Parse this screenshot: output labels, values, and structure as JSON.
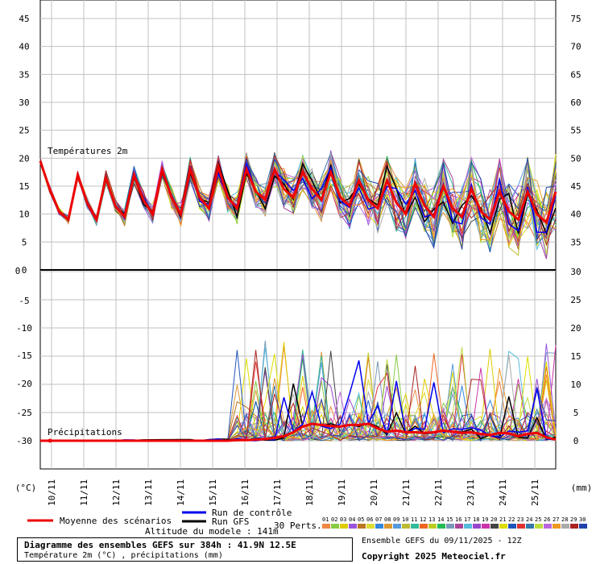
{
  "chart_data": {
    "type": "line",
    "title": "Diagramme des ensembles GEFS sur 384h : 41.9N 12.5E",
    "subtitle": "Température 2m (°C) , précipitations (mm)",
    "run_info": "Ensemble GEFS du 09/11/2025 - 12Z",
    "copyright": "Copyright 2025 Meteociel.fr",
    "altitude_note": "Altitude du modele : 141m",
    "left_unit": "(°C)",
    "right_unit": "(mm)",
    "panel_labels": {
      "temperature": "Températures 2m",
      "precipitation": "Précipitations"
    },
    "legend": {
      "mean": "Moyenne des scénarios",
      "control": "Run de contrôle",
      "gfs": "Run GFS",
      "perts_label": "30 Perts.",
      "perts_numbers": [
        "01",
        "02",
        "03",
        "04",
        "05",
        "06",
        "07",
        "08",
        "09",
        "10",
        "11",
        "12",
        "13",
        "14",
        "15",
        "16",
        "17",
        "18",
        "19",
        "20",
        "21",
        "22",
        "23",
        "24",
        "25",
        "26",
        "27",
        "28",
        "29",
        "30"
      ],
      "perts_colors": [
        "#ee8844",
        "#88cc44",
        "#ddcc00",
        "#9955dd",
        "#bb7722",
        "#dddd33",
        "#3388dd",
        "#dd9933",
        "#5599dd",
        "#bbbb33",
        "#33bb99",
        "#ee6622",
        "#bbcc22",
        "#22bb55",
        "#7799bb",
        "#aa4499",
        "#55bbdd",
        "#9944cc",
        "#cc33aa",
        "#444444",
        "#dddd00",
        "#2255bb",
        "#dd3333",
        "#3377aa",
        "#bbdd44",
        "#bb66dd",
        "#ee9922",
        "#aaaaaa",
        "#aa2222",
        "#2244aa"
      ],
      "mean_color": "#ee0000",
      "control_color": "#0000ee",
      "gfs_color": "#000000"
    },
    "x_tick_labels": [
      "10/11",
      "11/11",
      "12/11",
      "13/11",
      "14/11",
      "15/11",
      "16/11",
      "17/11",
      "18/11",
      "19/11",
      "20/11",
      "21/11",
      "22/11",
      "23/11",
      "24/11",
      "25/11"
    ],
    "temperature": {
      "ylabel": "(°C)",
      "ylim": [
        0,
        45
      ],
      "left_ticks": [
        "45",
        "40",
        "35",
        "30",
        "25",
        "20",
        "15",
        "10",
        "5",
        "0"
      ],
      "right_ticks": [
        "75",
        "70",
        "65",
        "60",
        "55",
        "50",
        "45",
        "40",
        "35"
      ],
      "mean": [
        19.5,
        14.5,
        10.5,
        9.0,
        17.0,
        12.0,
        9.0,
        16.5,
        11.5,
        9.5,
        17.0,
        12.5,
        10.0,
        18.0,
        13.0,
        10.0,
        18.0,
        13.0,
        11.0,
        18.5,
        13.0,
        11.0,
        18.0,
        14.0,
        12.5,
        18.0,
        14.5,
        13.0,
        17.5,
        14.5,
        12.5,
        17.5,
        13.0,
        11.5,
        16.0,
        12.5,
        11.0,
        16.0,
        12.0,
        10.0,
        15.5,
        11.5,
        9.5,
        15.0,
        11.0,
        9.5,
        14.5,
        10.5,
        9.0,
        14.0,
        10.5,
        9.0,
        14.0,
        10.0,
        8.5,
        14.0
      ]
    },
    "precipitation": {
      "ylabel": "(mm)",
      "ylim": [
        0,
        30
      ],
      "left_ticks": [
        "-5",
        "-10",
        "-15",
        "-20",
        "-25",
        "-30"
      ],
      "right_ticks": [
        "30",
        "25",
        "20",
        "15",
        "10",
        "5",
        "0"
      ],
      "mean": [
        0,
        0,
        0,
        0,
        0,
        0,
        0,
        0,
        0,
        0,
        0,
        0,
        0,
        0,
        0,
        0,
        0,
        0,
        0,
        0,
        0,
        0.1,
        0.1,
        0.2,
        0.3,
        0.5,
        0.8,
        1.5,
        2.5,
        3.0,
        2.8,
        2.6,
        2.5,
        2.8,
        2.8,
        3.0,
        2.2,
        1.6,
        1.8,
        1.5,
        1.5,
        1.4,
        1.5,
        1.8,
        1.6,
        1.4,
        1.5,
        1.2,
        1.0,
        1.4,
        1.3,
        0.8,
        1.2,
        1.4,
        0.6,
        0.2
      ]
    }
  }
}
